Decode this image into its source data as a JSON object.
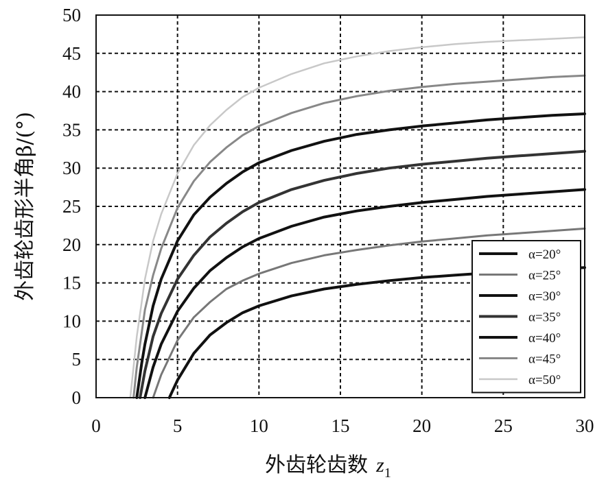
{
  "chart_data": {
    "type": "line",
    "xlabel": "外齿轮齿数",
    "xlabel_sub": "1",
    "xlabel_var": "z",
    "ylabel": "外齿轮齿形半角β/(°)",
    "xlim": [
      0,
      30
    ],
    "ylim": [
      0,
      50
    ],
    "xticks": [
      0,
      5,
      10,
      15,
      20,
      25,
      30
    ],
    "yticks": [
      0,
      5,
      10,
      15,
      20,
      25,
      30,
      35,
      40,
      45,
      50
    ],
    "grid": true,
    "legend_position": "bottom-right",
    "series": [
      {
        "name": "α=20°",
        "color": "#111111",
        "width": 4,
        "x": [
          4.5,
          5,
          6,
          7,
          8,
          9,
          10,
          12,
          14,
          16,
          18,
          20,
          22,
          24,
          26,
          28,
          30
        ],
        "y": [
          0,
          2.3,
          5.8,
          8.2,
          9.8,
          11.1,
          12.0,
          13.3,
          14.2,
          14.8,
          15.3,
          15.7,
          16.0,
          16.3,
          16.6,
          16.8,
          17.0
        ]
      },
      {
        "name": "α=25°",
        "color": "#777777",
        "width": 3,
        "x": [
          3.5,
          4,
          5,
          6,
          7,
          8,
          9,
          10,
          12,
          14,
          16,
          18,
          20,
          22,
          24,
          26,
          28,
          30
        ],
        "y": [
          0,
          3.0,
          7.5,
          10.5,
          12.5,
          14.2,
          15.3,
          16.2,
          17.6,
          18.6,
          19.3,
          19.9,
          20.4,
          20.8,
          21.2,
          21.5,
          21.8,
          22.1
        ]
      },
      {
        "name": "α=30°",
        "color": "#111111",
        "width": 4,
        "x": [
          3.0,
          3.5,
          4,
          5,
          6,
          7,
          8,
          9,
          10,
          12,
          14,
          16,
          18,
          20,
          22,
          24,
          26,
          28,
          30
        ],
        "y": [
          0,
          4.0,
          7.0,
          11.3,
          14.3,
          16.6,
          18.3,
          19.7,
          20.8,
          22.4,
          23.6,
          24.4,
          25.0,
          25.5,
          25.9,
          26.3,
          26.6,
          26.9,
          27.2
        ]
      },
      {
        "name": "α=35°",
        "color": "#333333",
        "width": 4,
        "x": [
          2.7,
          3,
          3.5,
          4,
          5,
          6,
          7,
          8,
          9,
          10,
          12,
          14,
          16,
          18,
          20,
          22,
          24,
          26,
          28,
          30
        ],
        "y": [
          0,
          3.5,
          8.0,
          11.0,
          15.5,
          18.6,
          21.0,
          22.8,
          24.3,
          25.5,
          27.2,
          28.4,
          29.3,
          30.0,
          30.5,
          30.9,
          31.3,
          31.6,
          31.9,
          32.2
        ]
      },
      {
        "name": "α=40°",
        "color": "#111111",
        "width": 4,
        "x": [
          2.5,
          2.8,
          3,
          3.5,
          4,
          5,
          6,
          7,
          8,
          9,
          10,
          12,
          14,
          16,
          18,
          20,
          22,
          24,
          26,
          28,
          30
        ],
        "y": [
          0,
          4.5,
          7.0,
          12.0,
          15.5,
          20.5,
          23.9,
          26.2,
          28.0,
          29.5,
          30.7,
          32.3,
          33.5,
          34.4,
          35.0,
          35.5,
          35.9,
          36.3,
          36.6,
          36.9,
          37.1
        ]
      },
      {
        "name": "α=45°",
        "color": "#888888",
        "width": 3,
        "x": [
          2.3,
          2.5,
          2.8,
          3,
          3.5,
          4,
          5,
          6,
          7,
          8,
          9,
          10,
          12,
          14,
          16,
          18,
          20,
          22,
          24,
          26,
          28,
          30
        ],
        "y": [
          0,
          4.0,
          8.5,
          11.5,
          16.0,
          19.5,
          24.8,
          28.3,
          30.8,
          32.7,
          34.3,
          35.5,
          37.2,
          38.5,
          39.4,
          40.1,
          40.6,
          41.0,
          41.3,
          41.6,
          41.9,
          42.1
        ]
      },
      {
        "name": "α=50°",
        "color": "#c8c8c8",
        "width": 2.5,
        "x": [
          2.1,
          2.3,
          2.5,
          2.8,
          3,
          3.5,
          4,
          5,
          6,
          7,
          8,
          9,
          10,
          12,
          14,
          16,
          18,
          20,
          22,
          24,
          26,
          28,
          30
        ],
        "y": [
          0,
          4.0,
          8.0,
          12.5,
          15.5,
          20.5,
          24.0,
          29.3,
          33.0,
          35.6,
          37.6,
          39.3,
          40.5,
          42.3,
          43.7,
          44.6,
          45.3,
          45.8,
          46.2,
          46.5,
          46.7,
          46.9,
          47.1
        ]
      }
    ]
  }
}
